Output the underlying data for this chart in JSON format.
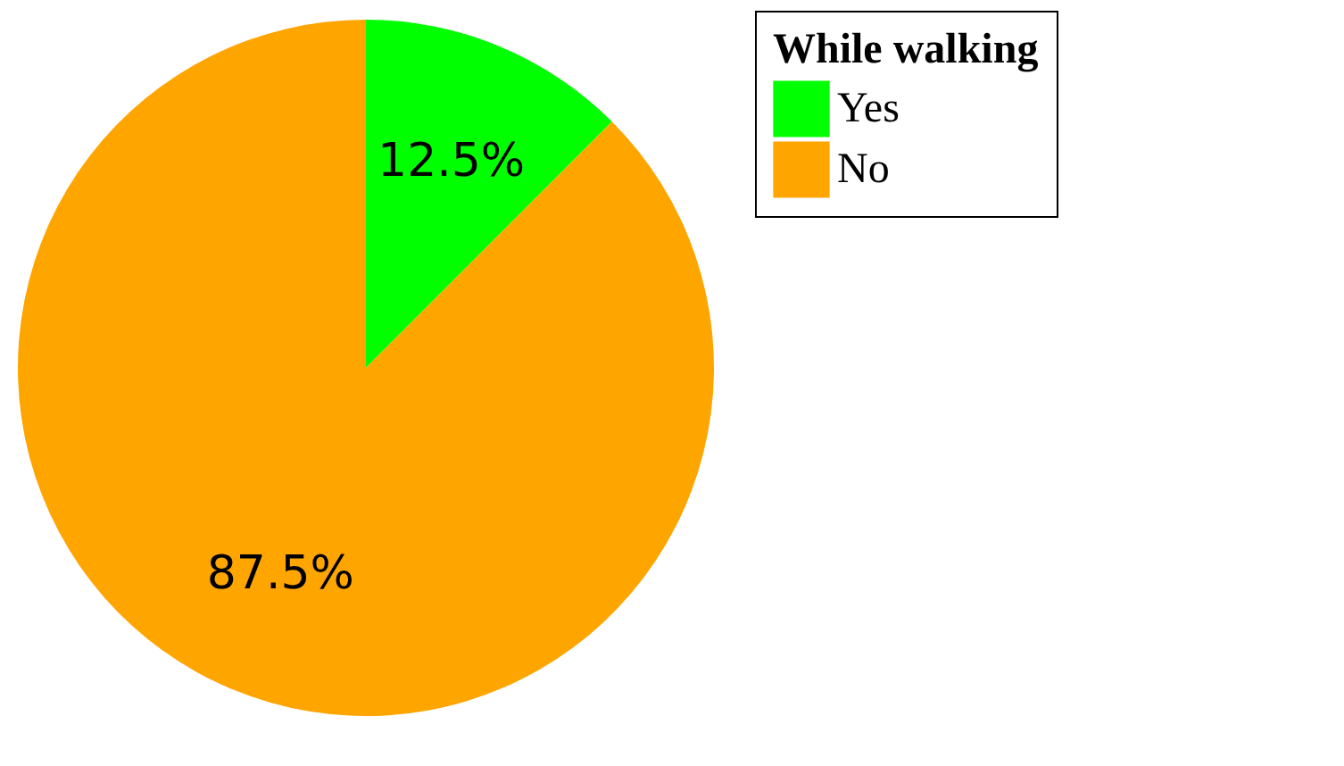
{
  "chart_data": {
    "type": "pie",
    "legend_title": "While walking",
    "categories": [
      "Yes",
      "No"
    ],
    "values": [
      12.5,
      87.5
    ],
    "colors": [
      "#00ff00",
      "#ffa500"
    ],
    "value_labels": [
      "12.5%",
      "87.5%"
    ],
    "legend": "right"
  }
}
